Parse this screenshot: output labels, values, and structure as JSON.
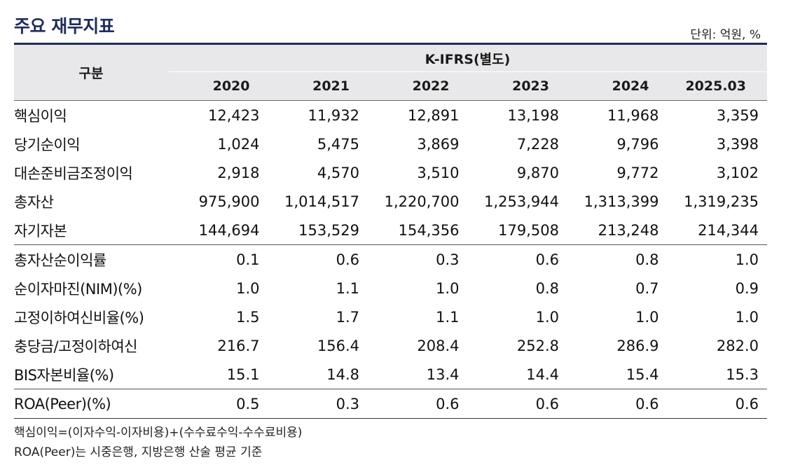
{
  "title": "주요 재무지표",
  "unit": "단위: 억원, %",
  "header": {
    "category": "구분",
    "group": "K-IFRS(별도)",
    "years": [
      "2020",
      "2021",
      "2022",
      "2023",
      "2024",
      "2025.03"
    ]
  },
  "rows": [
    {
      "label": "핵심이익",
      "values": [
        "12,423",
        "11,932",
        "12,891",
        "13,198",
        "11,968",
        "3,359"
      ]
    },
    {
      "label": "당기순이익",
      "values": [
        "1,024",
        "5,475",
        "3,869",
        "7,228",
        "9,796",
        "3,398"
      ]
    },
    {
      "label": "대손준비금조정이익",
      "values": [
        "2,918",
        "4,570",
        "3,510",
        "9,870",
        "9,772",
        "3,102"
      ]
    },
    {
      "label": "총자산",
      "values": [
        "975,900",
        "1,014,517",
        "1,220,700",
        "1,253,944",
        "1,313,399",
        "1,319,235"
      ]
    },
    {
      "label": "자기자본",
      "values": [
        "144,694",
        "153,529",
        "154,356",
        "179,508",
        "213,248",
        "214,344"
      ]
    },
    {
      "label": "총자산순이익률",
      "values": [
        "0.1",
        "0.6",
        "0.3",
        "0.6",
        "0.8",
        "1.0"
      ]
    },
    {
      "label": "순이자마진(NIM)(%)",
      "values": [
        "1.0",
        "1.1",
        "1.0",
        "0.8",
        "0.7",
        "0.9"
      ]
    },
    {
      "label": "고정이하여신비율(%)",
      "values": [
        "1.5",
        "1.7",
        "1.1",
        "1.0",
        "1.0",
        "1.0"
      ]
    },
    {
      "label": "충당금/고정이하여신",
      "values": [
        "216.7",
        "156.4",
        "208.4",
        "252.8",
        "286.9",
        "282.0"
      ]
    },
    {
      "label": "BIS자본비율(%)",
      "values": [
        "15.1",
        "14.8",
        "13.4",
        "14.4",
        "15.4",
        "15.3"
      ]
    },
    {
      "label": "ROA(Peer)(%)",
      "values": [
        "0.5",
        "0.3",
        "0.6",
        "0.6",
        "0.6",
        "0.6"
      ]
    }
  ],
  "notes": [
    "핵심이익=(이자수익-이자비용)+(수수료수익-수수료비용)",
    "ROA(Peer)는 시중은행, 지방은행 산술 평균 기준"
  ]
}
